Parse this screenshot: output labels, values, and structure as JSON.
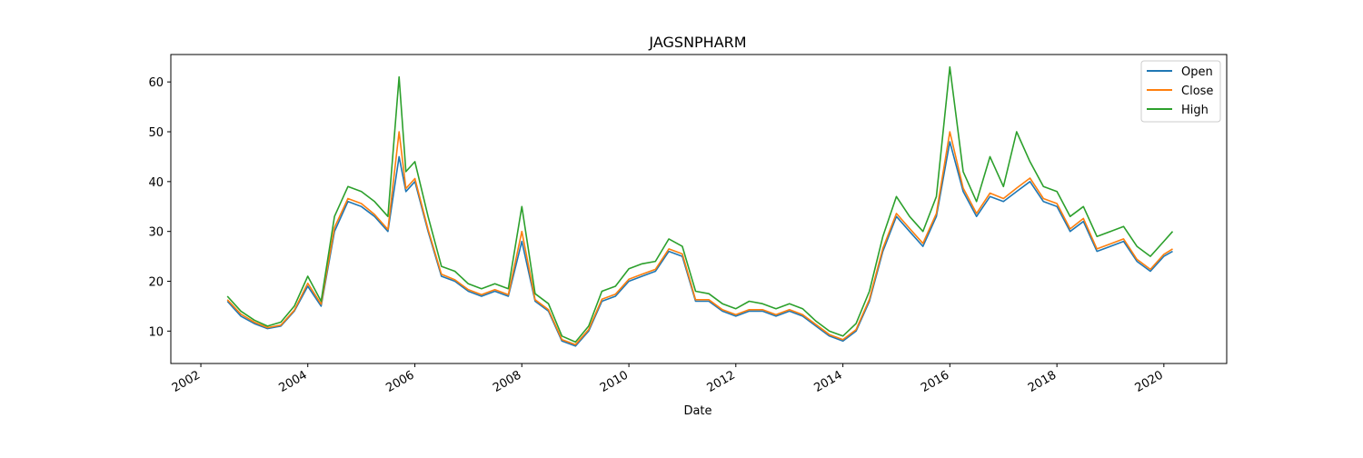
{
  "chart_data": {
    "type": "line",
    "title": "JAGSNPHARM",
    "xlabel": "Date",
    "ylabel": "",
    "xlim": [
      "2001-06-10",
      "2021-03-05"
    ],
    "ylim": [
      3.5,
      65.5
    ],
    "x_ticks": [
      "2002",
      "2004",
      "2006",
      "2008",
      "2010",
      "2012",
      "2014",
      "2016",
      "2018",
      "2020"
    ],
    "y_ticks": [
      10,
      20,
      30,
      40,
      50,
      60
    ],
    "grid": false,
    "legend_position": "top-right",
    "dates": [
      "2002-07-01",
      "2002-10-01",
      "2003-01-01",
      "2003-04-01",
      "2003-07-01",
      "2003-10-01",
      "2004-01-01",
      "2004-04-01",
      "2004-07-01",
      "2004-10-01",
      "2005-01-01",
      "2005-04-01",
      "2005-07-01",
      "2005-09-15",
      "2005-11-01",
      "2006-01-01",
      "2006-04-01",
      "2006-07-01",
      "2006-10-01",
      "2007-01-01",
      "2007-04-01",
      "2007-07-01",
      "2007-10-01",
      "2008-01-01",
      "2008-04-01",
      "2008-07-01",
      "2008-10-01",
      "2009-01-01",
      "2009-04-01",
      "2009-07-01",
      "2009-10-01",
      "2010-01-01",
      "2010-04-01",
      "2010-07-01",
      "2010-10-01",
      "2011-01-01",
      "2011-04-01",
      "2011-07-01",
      "2011-10-01",
      "2012-01-01",
      "2012-04-01",
      "2012-07-01",
      "2012-10-01",
      "2013-01-01",
      "2013-04-01",
      "2013-07-01",
      "2013-10-01",
      "2014-01-01",
      "2014-04-01",
      "2014-07-01",
      "2014-10-01",
      "2015-01-01",
      "2015-04-01",
      "2015-07-01",
      "2015-10-01",
      "2016-01-01",
      "2016-04-01",
      "2016-07-01",
      "2016-10-01",
      "2017-01-01",
      "2017-04-01",
      "2017-07-01",
      "2017-10-01",
      "2018-01-01",
      "2018-04-01",
      "2018-07-01",
      "2018-10-01",
      "2019-01-01",
      "2019-04-01",
      "2019-07-01",
      "2019-10-01",
      "2020-01-01",
      "2020-03-01"
    ],
    "series": [
      {
        "name": "Open",
        "color": "#1f77b4",
        "values": [
          16,
          13,
          11.5,
          10.5,
          11,
          14,
          19,
          15,
          30,
          36,
          35,
          33,
          30,
          45,
          38,
          40,
          30,
          21,
          20,
          18,
          17,
          18,
          17,
          28,
          16,
          14,
          8,
          7,
          10,
          16,
          17,
          20,
          21,
          22,
          26,
          25,
          16,
          16,
          14,
          13,
          14,
          14,
          13,
          14,
          13,
          11,
          9,
          8,
          10,
          16,
          26,
          33,
          30,
          27,
          33,
          48,
          38,
          33,
          37,
          36,
          38,
          40,
          36,
          35,
          30,
          32,
          26,
          27,
          28,
          24,
          22,
          25,
          26
        ]
      },
      {
        "name": "Close",
        "color": "#ff7f0e",
        "values": [
          16.3,
          13.4,
          11.8,
          10.7,
          11.2,
          14.2,
          19.6,
          15.4,
          30.8,
          36.6,
          35.6,
          33.4,
          30.4,
          50,
          38.6,
          40.6,
          30.4,
          21.4,
          20.3,
          18.3,
          17.3,
          18.3,
          17.3,
          30,
          16.3,
          14.3,
          8.3,
          7.3,
          10.3,
          16.4,
          17.4,
          20.4,
          21.4,
          22.4,
          26.5,
          25.5,
          16.3,
          16.3,
          14.3,
          13.3,
          14.3,
          14.3,
          13.3,
          14.3,
          13.3,
          11.3,
          9.3,
          8.3,
          10.3,
          16.4,
          26.6,
          33.6,
          30.6,
          27.6,
          33.6,
          50,
          38.7,
          33.6,
          37.7,
          36.6,
          38.7,
          40.7,
          36.6,
          35.6,
          30.5,
          32.6,
          26.5,
          27.5,
          28.5,
          24.4,
          22.4,
          25.4,
          26.5
        ]
      },
      {
        "name": "High",
        "color": "#2ca02c",
        "values": [
          17,
          14,
          12.2,
          11,
          11.8,
          15,
          21,
          16,
          33,
          39,
          38,
          36,
          33,
          61,
          42,
          44,
          33,
          23,
          22,
          19.5,
          18.5,
          19.5,
          18.5,
          35,
          17.5,
          15.5,
          9,
          7.8,
          11,
          18,
          19,
          22.5,
          23.5,
          24,
          28.5,
          27,
          18,
          17.5,
          15.5,
          14.5,
          16,
          15.5,
          14.5,
          15.5,
          14.5,
          12,
          10,
          9,
          11.5,
          18,
          29,
          37,
          33,
          30,
          37,
          63,
          42,
          36,
          45,
          39,
          50,
          44,
          39,
          38,
          33,
          35,
          29,
          30,
          31,
          27,
          25,
          28,
          30
        ]
      }
    ]
  }
}
